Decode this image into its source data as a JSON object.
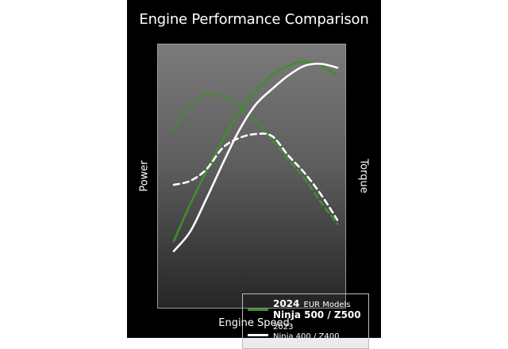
{
  "chart_data": {
    "type": "line",
    "title": "Engine Performance Comparison",
    "xlabel": "Engine Speed",
    "ylabel": "Power",
    "ylabel_right": "Torque",
    "xlim": [
      0,
      100
    ],
    "ylim": [
      0,
      100
    ],
    "grid": false,
    "legend_position": "bottom-right",
    "series": [
      {
        "key": "power_2024",
        "metric": "Power",
        "style": "solid",
        "color": "#3f8f2f",
        "x": [
          0,
          10,
          20,
          30,
          40,
          50,
          60,
          70,
          80,
          90,
          100
        ],
        "y": [
          8,
          27,
          44,
          60,
          74,
          85,
          93,
          98,
          100,
          98,
          93
        ]
      },
      {
        "key": "torque_2024",
        "metric": "Torque",
        "style": "dashed",
        "color": "#3f8f2f",
        "x": [
          0,
          10,
          20,
          30,
          40,
          50,
          60,
          70,
          80,
          90,
          100
        ],
        "y": [
          65,
          78,
          83,
          82,
          77,
          70,
          60,
          50,
          40,
          28,
          17
        ]
      },
      {
        "key": "power_2023",
        "metric": "Power",
        "style": "solid",
        "color": "#ffffff",
        "x": [
          0,
          10,
          20,
          30,
          40,
          50,
          60,
          70,
          80,
          90,
          100
        ],
        "y": [
          3,
          13,
          30,
          48,
          65,
          78,
          86,
          93,
          98,
          99,
          97
        ]
      },
      {
        "key": "torque_2023",
        "metric": "Torque",
        "style": "dashed",
        "color": "#ffffff",
        "x": [
          0,
          10,
          20,
          30,
          40,
          50,
          60,
          70,
          80,
          90,
          100
        ],
        "y": [
          37,
          39,
          45,
          56,
          61,
          63,
          62,
          52,
          43,
          32,
          19
        ]
      }
    ]
  },
  "legend": {
    "item_2024": {
      "year": "2024",
      "region": "EUR Models",
      "models": "Ninja 500 / Z500",
      "color": "#3f8f2f"
    },
    "item_2023": {
      "year": "2023",
      "models": "Ninja 400 / Z400",
      "color": "#ffffff"
    }
  }
}
